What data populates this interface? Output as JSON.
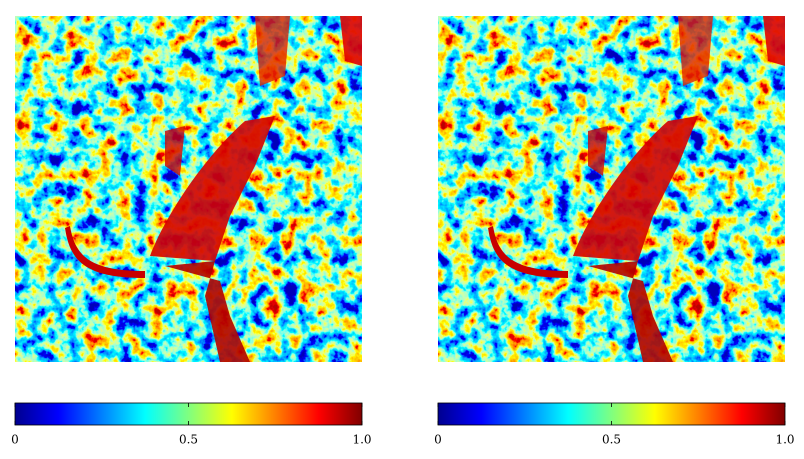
{
  "chart_data": [
    {
      "type": "heatmap",
      "colormap": "jet",
      "clim": [
        0,
        1
      ],
      "cticks": [
        0,
        0.5,
        {
          "value": 1,
          "label": "1.0"
        }
      ]
    },
    {
      "type": "heatmap",
      "colormap": "jet",
      "clim": [
        0,
        1
      ],
      "cticks": [
        0,
        0.5,
        {
          "value": 1,
          "label": "1.0"
        }
      ]
    }
  ]
}
